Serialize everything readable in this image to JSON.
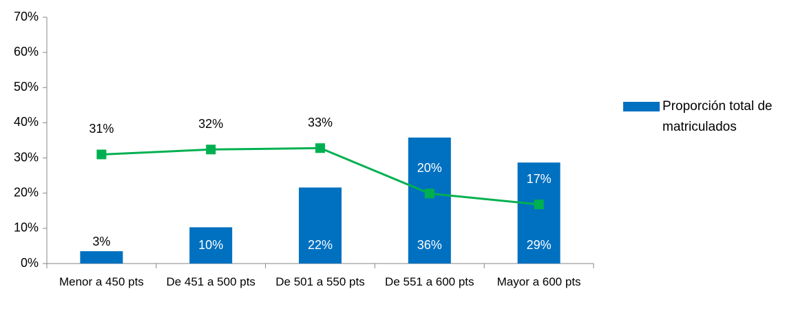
{
  "chart_data": {
    "type": "bar",
    "categories": [
      "Menor a 450 pts",
      "De 451 a 500 pts",
      "De 501 a 550 pts",
      "De 551 a 600 pts",
      "Mayor a 600 pts"
    ],
    "series": [
      {
        "name": "Proporción total de matriculados",
        "type": "bar",
        "color": "#0070c0",
        "values": [
          3.5,
          10.3,
          21.6,
          35.8,
          28.7
        ],
        "value_labels": [
          "3%",
          "10%",
          "22%",
          "36%",
          "29%"
        ]
      },
      {
        "type": "line",
        "color": "#00b050",
        "values": [
          31,
          32.4,
          32.8,
          19.9,
          16.8
        ],
        "value_labels": [
          "31%",
          "32%",
          "33%",
          "20%",
          "17%"
        ]
      }
    ],
    "ylim": [
      0,
      70
    ],
    "yticks": [
      {
        "value": 0,
        "label": "0%"
      },
      {
        "value": 10,
        "label": "10%"
      },
      {
        "value": 20,
        "label": "20%"
      },
      {
        "value": 30,
        "label": "30%"
      },
      {
        "value": 40,
        "label": "40%"
      },
      {
        "value": 50,
        "label": "50%"
      },
      {
        "value": 60,
        "label": "60%"
      },
      {
        "value": 70,
        "label": "70%"
      }
    ],
    "legend": "right"
  }
}
